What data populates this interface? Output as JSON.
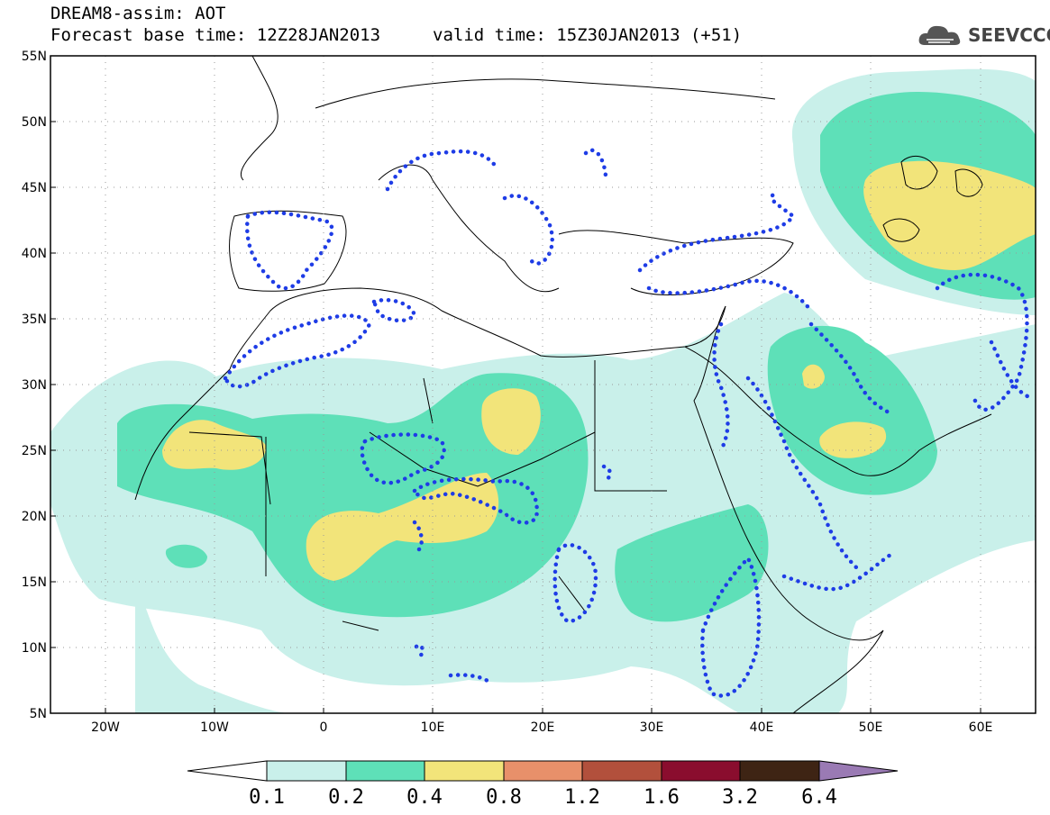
{
  "header": {
    "line1": "DREAM8-assim: AOT",
    "line2": "Forecast base time: 12Z28JAN2013",
    "valid": "valid time: 15Z30JAN2013 (+51)",
    "logo_text": "SEEVCCC",
    "logo_icon": "cloud-icon"
  },
  "map": {
    "variable": "AOT",
    "projection": "lat-lon",
    "lon_range": [
      -25,
      65
    ],
    "lat_range": [
      5,
      55
    ],
    "x_ticks": [
      "20W",
      "10W",
      "0",
      "10E",
      "20E",
      "30E",
      "40E",
      "50E",
      "60E"
    ],
    "y_ticks": [
      "5N",
      "10N",
      "15N",
      "20N",
      "25N",
      "30N",
      "35N",
      "40N",
      "45N",
      "50N",
      "55N"
    ],
    "grid": true,
    "colors": {
      "c01": "#c9f0ea",
      "c02": "#5ee0b8",
      "c04": "#f2e47a",
      "c08": "#e8906a",
      "c12": "#b2503c",
      "c16": "#8a0d2e",
      "c32": "#3e2414",
      "c64": "#9a7ab4",
      "dotted_contour": "#1e3ce6"
    }
  },
  "colorbar": {
    "labels": [
      "0.1",
      "0.2",
      "0.4",
      "0.8",
      "1.2",
      "1.6",
      "3.2",
      "6.4"
    ],
    "colors": [
      "#c9f0ea",
      "#5ee0b8",
      "#f2e47a",
      "#e8906a",
      "#b2503c",
      "#8a0d2e",
      "#3e2414"
    ],
    "under_color": "#ffffff",
    "over_color": "#9a7ab4"
  }
}
